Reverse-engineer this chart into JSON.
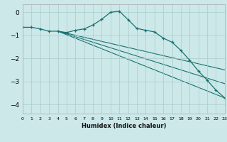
{
  "xlabel": "Humidex (Indice chaleur)",
  "bg_color": "#cce8e8",
  "grid_color": "#aacccc",
  "line_color": "#1a7070",
  "xlim": [
    0,
    23
  ],
  "ylim": [
    -4.4,
    0.35
  ],
  "yticks": [
    0,
    -1,
    -2,
    -3,
    -4
  ],
  "xtick_labels": [
    "0",
    "1",
    "2",
    "3",
    "4",
    "5",
    "6",
    "7",
    "8",
    "9",
    "10",
    "11",
    "12",
    "13",
    "14",
    "15",
    "16",
    "17",
    "18",
    "19",
    "20",
    "21",
    "22",
    "23"
  ],
  "main_x": [
    0,
    1,
    2,
    3,
    4,
    5,
    6,
    7,
    8,
    9,
    10,
    11,
    12,
    13,
    14,
    15,
    16,
    17,
    18,
    19,
    20,
    21,
    22,
    23
  ],
  "main_y": [
    -0.65,
    -0.65,
    -0.72,
    -0.82,
    -0.82,
    -0.88,
    -0.78,
    -0.72,
    -0.55,
    -0.3,
    0.0,
    0.05,
    -0.32,
    -0.7,
    -0.78,
    -0.85,
    -1.12,
    -1.3,
    -1.65,
    -2.08,
    -2.55,
    -2.95,
    -3.38,
    -3.72
  ],
  "fan_lines": [
    {
      "x": [
        4,
        23
      ],
      "y": [
        -0.82,
        -2.5
      ]
    },
    {
      "x": [
        4,
        23
      ],
      "y": [
        -0.82,
        -3.1
      ]
    },
    {
      "x": [
        4,
        23
      ],
      "y": [
        -0.82,
        -3.72
      ]
    }
  ]
}
